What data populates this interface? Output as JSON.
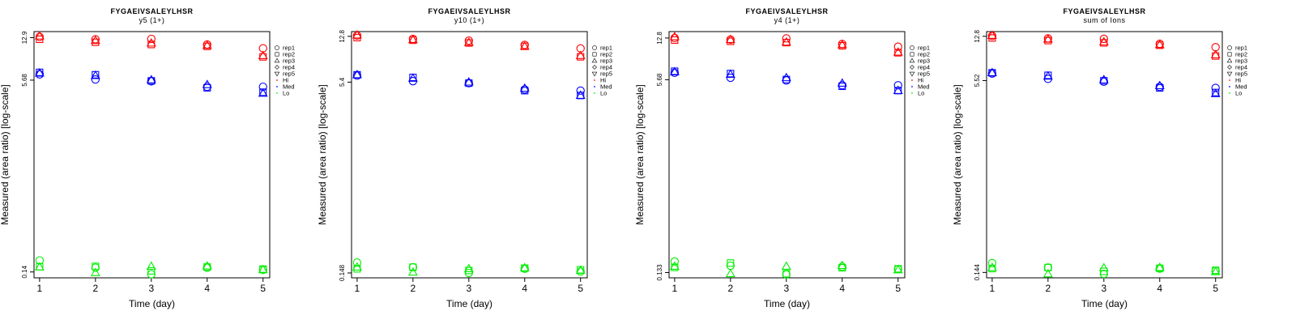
{
  "legend": {
    "labels": [
      "rep1",
      "rep2",
      "rep3",
      "rep4",
      "rep5",
      "Hi",
      "Med",
      "Lo"
    ],
    "symbols": [
      "circle",
      "square",
      "triangle-up",
      "diamond",
      "triangle-down",
      "dot",
      "dot",
      "dot"
    ],
    "colors": [
      "#000000",
      "#000000",
      "#000000",
      "#000000",
      "#000000",
      "#ff0000",
      "#0000ff",
      "#00ee00"
    ]
  },
  "colors": {
    "Hi": "#ff0000",
    "Med": "#0000ff",
    "Lo": "#00ee00"
  },
  "chart_data": [
    {
      "type": "scatter",
      "title": "FYGAEIVSALEYLHSR",
      "subtitle": "y5 (1+)",
      "xlabel": "Time (day)",
      "ylabel": "Measured (area ratio) [log-scale]",
      "log_y": true,
      "ylim": [
        0.125,
        14.5
      ],
      "yticks": [
        "0.14",
        "5.68",
        "12.9"
      ],
      "ytick_values": [
        0.14,
        5.68,
        12.9
      ],
      "x": [
        1,
        2,
        3,
        4,
        5
      ],
      "series": [
        {
          "name": "Hi",
          "rep": "rep1",
          "values": [
            13.1,
            12.5,
            12.6,
            11.3,
            10.5
          ]
        },
        {
          "name": "Hi",
          "rep": "rep2",
          "values": [
            12.5,
            11.8,
            11.3,
            10.9,
            8.9
          ]
        },
        {
          "name": "Hi",
          "rep": "rep3",
          "values": [
            13.3,
            12.2,
            11.6,
            11.1,
            9.1
          ]
        },
        {
          "name": "Med",
          "rep": "rep1",
          "values": [
            6.35,
            5.75,
            5.55,
            5.0,
            5.0
          ]
        },
        {
          "name": "Med",
          "rep": "rep2",
          "values": [
            6.6,
            6.3,
            5.6,
            4.9,
            4.5
          ]
        },
        {
          "name": "Med",
          "rep": "rep3",
          "values": [
            6.5,
            6.2,
            5.7,
            5.2,
            4.4
          ]
        },
        {
          "name": "Lo",
          "rep": "rep1",
          "values": [
            0.175,
            0.152,
            0.134,
            0.152,
            0.146
          ]
        },
        {
          "name": "Lo",
          "rep": "rep2",
          "values": [
            0.155,
            0.156,
            0.143,
            0.154,
            0.148
          ]
        },
        {
          "name": "Lo",
          "rep": "rep3",
          "values": [
            0.154,
            0.138,
            0.156,
            0.157,
            0.146
          ]
        }
      ]
    },
    {
      "type": "scatter",
      "title": "FYGAEIVSALEYLHSR",
      "subtitle": "y10 (1+)",
      "xlabel": "Time (day)",
      "ylabel": "Measured (area ratio) [log-scale]",
      "log_y": true,
      "ylim": [
        0.135,
        14.0
      ],
      "yticks": [
        "0.148",
        "5.4",
        "12.8"
      ],
      "ytick_values": [
        0.148,
        5.4,
        12.8
      ],
      "x": [
        1,
        2,
        3,
        4,
        5
      ],
      "series": [
        {
          "name": "Hi",
          "rep": "rep1",
          "values": [
            13.0,
            12.2,
            11.8,
            10.9,
            10.2
          ]
        },
        {
          "name": "Hi",
          "rep": "rep2",
          "values": [
            12.5,
            11.9,
            11.3,
            10.6,
            8.7
          ]
        },
        {
          "name": "Hi",
          "rep": "rep3",
          "values": [
            13.1,
            12.0,
            11.4,
            10.6,
            8.9
          ]
        },
        {
          "name": "Med",
          "rep": "rep1",
          "values": [
            6.1,
            5.5,
            5.3,
            4.7,
            4.6
          ]
        },
        {
          "name": "Med",
          "rep": "rep2",
          "values": [
            6.2,
            5.9,
            5.3,
            4.6,
            4.2
          ]
        },
        {
          "name": "Med",
          "rep": "rep3",
          "values": [
            6.2,
            5.8,
            5.4,
            4.8,
            4.2
          ]
        },
        {
          "name": "Lo",
          "rep": "rep1",
          "values": [
            0.18,
            0.165,
            0.148,
            0.16,
            0.152
          ]
        },
        {
          "name": "Lo",
          "rep": "rep2",
          "values": [
            0.16,
            0.165,
            0.155,
            0.162,
            0.157
          ]
        },
        {
          "name": "Lo",
          "rep": "rep3",
          "values": [
            0.165,
            0.15,
            0.16,
            0.163,
            0.155
          ]
        }
      ]
    },
    {
      "type": "scatter",
      "title": "FYGAEIVSALEYLHSR",
      "subtitle": "y4 (1+)",
      "xlabel": "Time (day)",
      "ylabel": "Measured (area ratio) [log-scale]",
      "log_y": true,
      "ylim": [
        0.12,
        14.5
      ],
      "yticks": [
        "0.133",
        "5.68",
        "12.8"
      ],
      "ytick_values": [
        0.133,
        5.68,
        12.8
      ],
      "x": [
        1,
        2,
        3,
        4,
        5
      ],
      "series": [
        {
          "name": "Hi",
          "rep": "rep1",
          "values": [
            12.8,
            12.4,
            12.7,
            11.4,
            10.8
          ]
        },
        {
          "name": "Hi",
          "rep": "rep2",
          "values": [
            12.3,
            12.0,
            11.7,
            11.0,
            9.6
          ]
        },
        {
          "name": "Hi",
          "rep": "rep3",
          "values": [
            13.1,
            12.4,
            11.8,
            11.2,
            9.7
          ]
        },
        {
          "name": "Med",
          "rep": "rep1",
          "values": [
            6.5,
            5.9,
            5.6,
            5.1,
            5.1
          ]
        },
        {
          "name": "Med",
          "rep": "rep2",
          "values": [
            6.7,
            6.4,
            5.7,
            5.0,
            4.6
          ]
        },
        {
          "name": "Med",
          "rep": "rep3",
          "values": [
            6.6,
            6.3,
            5.9,
            5.3,
            4.6
          ]
        },
        {
          "name": "Lo",
          "rep": "rep1",
          "values": [
            0.165,
            0.152,
            0.128,
            0.149,
            0.142
          ]
        },
        {
          "name": "Lo",
          "rep": "rep2",
          "values": [
            0.147,
            0.16,
            0.13,
            0.146,
            0.143
          ]
        },
        {
          "name": "Lo",
          "rep": "rep3",
          "values": [
            0.15,
            0.13,
            0.15,
            0.152,
            0.14
          ]
        }
      ]
    },
    {
      "type": "scatter",
      "title": "FYGAEIVSALEYLHSR",
      "subtitle": "sum of Ions",
      "xlabel": "Time (day)",
      "ylabel": "Measured (area ratio) [log-scale]",
      "log_y": true,
      "ylim": [
        0.13,
        14.0
      ],
      "yticks": [
        "0.144",
        "5.52",
        "12.8"
      ],
      "ytick_values": [
        0.144,
        5.52,
        12.8
      ],
      "x": [
        1,
        2,
        3,
        4,
        5
      ],
      "series": [
        {
          "name": "Hi",
          "rep": "rep1",
          "values": [
            12.9,
            12.3,
            12.2,
            11.1,
            10.4
          ]
        },
        {
          "name": "Hi",
          "rep": "rep2",
          "values": [
            12.4,
            11.8,
            11.3,
            10.8,
            8.8
          ]
        },
        {
          "name": "Hi",
          "rep": "rep3",
          "values": [
            13.0,
            12.1,
            11.5,
            10.9,
            9.0
          ]
        },
        {
          "name": "Med",
          "rep": "rep1",
          "values": [
            6.3,
            5.7,
            5.4,
            4.9,
            4.8
          ]
        },
        {
          "name": "Med",
          "rep": "rep2",
          "values": [
            6.4,
            6.1,
            5.5,
            4.8,
            4.4
          ]
        },
        {
          "name": "Med",
          "rep": "rep3",
          "values": [
            6.4,
            6.0,
            5.6,
            5.0,
            4.3
          ]
        },
        {
          "name": "Lo",
          "rep": "rep1",
          "values": [
            0.172,
            0.158,
            0.14,
            0.155,
            0.148
          ]
        },
        {
          "name": "Lo",
          "rep": "rep2",
          "values": [
            0.155,
            0.158,
            0.147,
            0.156,
            0.15
          ]
        },
        {
          "name": "Lo",
          "rep": "rep3",
          "values": [
            0.158,
            0.14,
            0.157,
            0.158,
            0.146
          ]
        }
      ]
    }
  ]
}
